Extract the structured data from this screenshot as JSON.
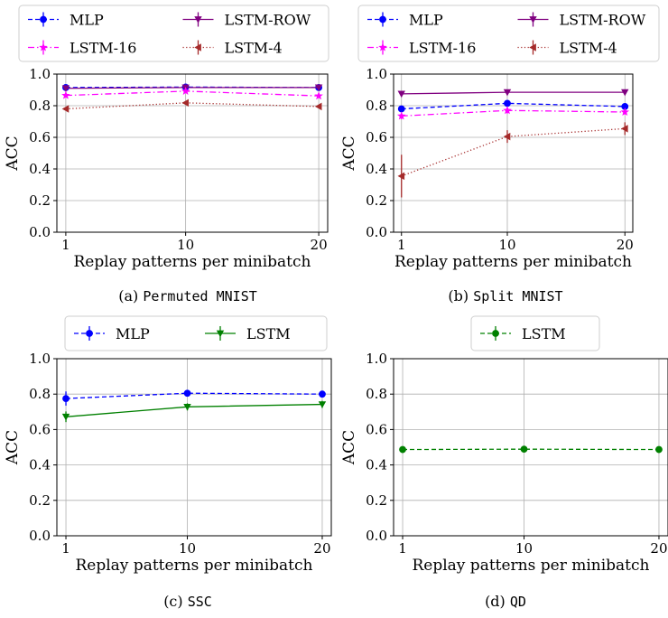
{
  "chart_data": [
    {
      "type": "line",
      "panel": "a",
      "caption_prefix": "(a)",
      "caption_title": "Permuted MNIST",
      "xlabel": "Replay patterns per minibatch",
      "ylabel": "ACC",
      "x": [
        1,
        10,
        20
      ],
      "xticks": [
        "1",
        "10",
        "20"
      ],
      "ylim": [
        0.0,
        1.0
      ],
      "yticks": [
        "0.0",
        "0.2",
        "0.4",
        "0.6",
        "0.8",
        "1.0"
      ],
      "grid": true,
      "legend_placement": "top (2 columns)",
      "series": [
        {
          "name": "MLP",
          "values": [
            0.915,
            0.918,
            0.915
          ],
          "err": [
            0.005,
            0.005,
            0.005
          ],
          "color": "#0000ff",
          "dash": "dashed",
          "marker": "circle"
        },
        {
          "name": "LSTM-ROW",
          "values": [
            0.91,
            0.915,
            0.915
          ],
          "err": [
            0.005,
            0.005,
            0.005
          ],
          "color": "#800080",
          "dash": "solid",
          "marker": "triangle-down"
        },
        {
          "name": "LSTM-16",
          "values": [
            0.865,
            0.892,
            0.862
          ],
          "err": [
            0.01,
            0.01,
            0.01
          ],
          "color": "#ff00ff",
          "dash": "dashdot",
          "marker": "star"
        },
        {
          "name": "LSTM-4",
          "values": [
            0.78,
            0.818,
            0.795
          ],
          "err": [
            0.01,
            0.01,
            0.01
          ],
          "color": "#a52a2a",
          "dash": "dotted",
          "marker": "triangle-left"
        }
      ]
    },
    {
      "type": "line",
      "panel": "b",
      "caption_prefix": "(b)",
      "caption_title": "Split MNIST",
      "xlabel": "Replay patterns per minibatch",
      "ylabel": "ACC",
      "x": [
        1,
        10,
        20
      ],
      "xticks": [
        "1",
        "10",
        "20"
      ],
      "ylim": [
        0.0,
        1.0
      ],
      "yticks": [
        "0.0",
        "0.2",
        "0.4",
        "0.6",
        "0.8",
        "1.0"
      ],
      "grid": true,
      "legend_placement": "top (2 columns)",
      "series": [
        {
          "name": "MLP",
          "values": [
            0.78,
            0.815,
            0.795
          ],
          "err": [
            0.02,
            0.015,
            0.01
          ],
          "color": "#0000ff",
          "dash": "dashed",
          "marker": "circle"
        },
        {
          "name": "LSTM-ROW",
          "values": [
            0.875,
            0.885,
            0.885
          ],
          "err": [
            0.005,
            0.005,
            0.005
          ],
          "color": "#800080",
          "dash": "solid",
          "marker": "triangle-down"
        },
        {
          "name": "LSTM-16",
          "values": [
            0.735,
            0.77,
            0.76
          ],
          "err": [
            0.02,
            0.02,
            0.015
          ],
          "color": "#ff00ff",
          "dash": "dashdot",
          "marker": "star"
        },
        {
          "name": "LSTM-4",
          "values": [
            0.355,
            0.605,
            0.655
          ],
          "err": [
            0.135,
            0.04,
            0.04
          ],
          "color": "#a52a2a",
          "dash": "dotted",
          "marker": "triangle-left"
        }
      ]
    },
    {
      "type": "line",
      "panel": "c",
      "caption_prefix": "(c)",
      "caption_title": "SSC",
      "xlabel": "Replay patterns per minibatch",
      "ylabel": "ACC",
      "x": [
        1,
        10,
        20
      ],
      "xticks": [
        "1",
        "10",
        "20"
      ],
      "ylim": [
        0.0,
        1.0
      ],
      "yticks": [
        "0.0",
        "0.2",
        "0.4",
        "0.6",
        "0.8",
        "1.0"
      ],
      "grid": true,
      "legend_placement": "top (2 columns)",
      "series": [
        {
          "name": "MLP",
          "values": [
            0.775,
            0.805,
            0.8
          ],
          "err": [
            0.04,
            0.015,
            0.015
          ],
          "color": "#0000ff",
          "dash": "dashed",
          "marker": "circle"
        },
        {
          "name": "LSTM",
          "values": [
            0.672,
            0.728,
            0.742
          ],
          "err": [
            0.03,
            0.02,
            0.02
          ],
          "color": "#008000",
          "dash": "solid",
          "marker": "triangle-down"
        }
      ]
    },
    {
      "type": "line",
      "panel": "d",
      "caption_prefix": "(d)",
      "caption_title": "QD",
      "xlabel": "Replay patterns per minibatch",
      "ylabel": "ACC",
      "x": [
        1,
        10,
        20
      ],
      "xticks": [
        "1",
        "10",
        "20"
      ],
      "ylim": [
        0.0,
        1.0
      ],
      "yticks": [
        "0.0",
        "0.2",
        "0.4",
        "0.6",
        "0.8",
        "1.0"
      ],
      "grid": true,
      "legend_placement": "top (1 column)",
      "series": [
        {
          "name": "LSTM",
          "values": [
            0.487,
            0.489,
            0.487
          ],
          "err": [
            0.005,
            0.005,
            0.005
          ],
          "color": "#008000",
          "dash": "dashed",
          "marker": "circle"
        }
      ]
    }
  ]
}
